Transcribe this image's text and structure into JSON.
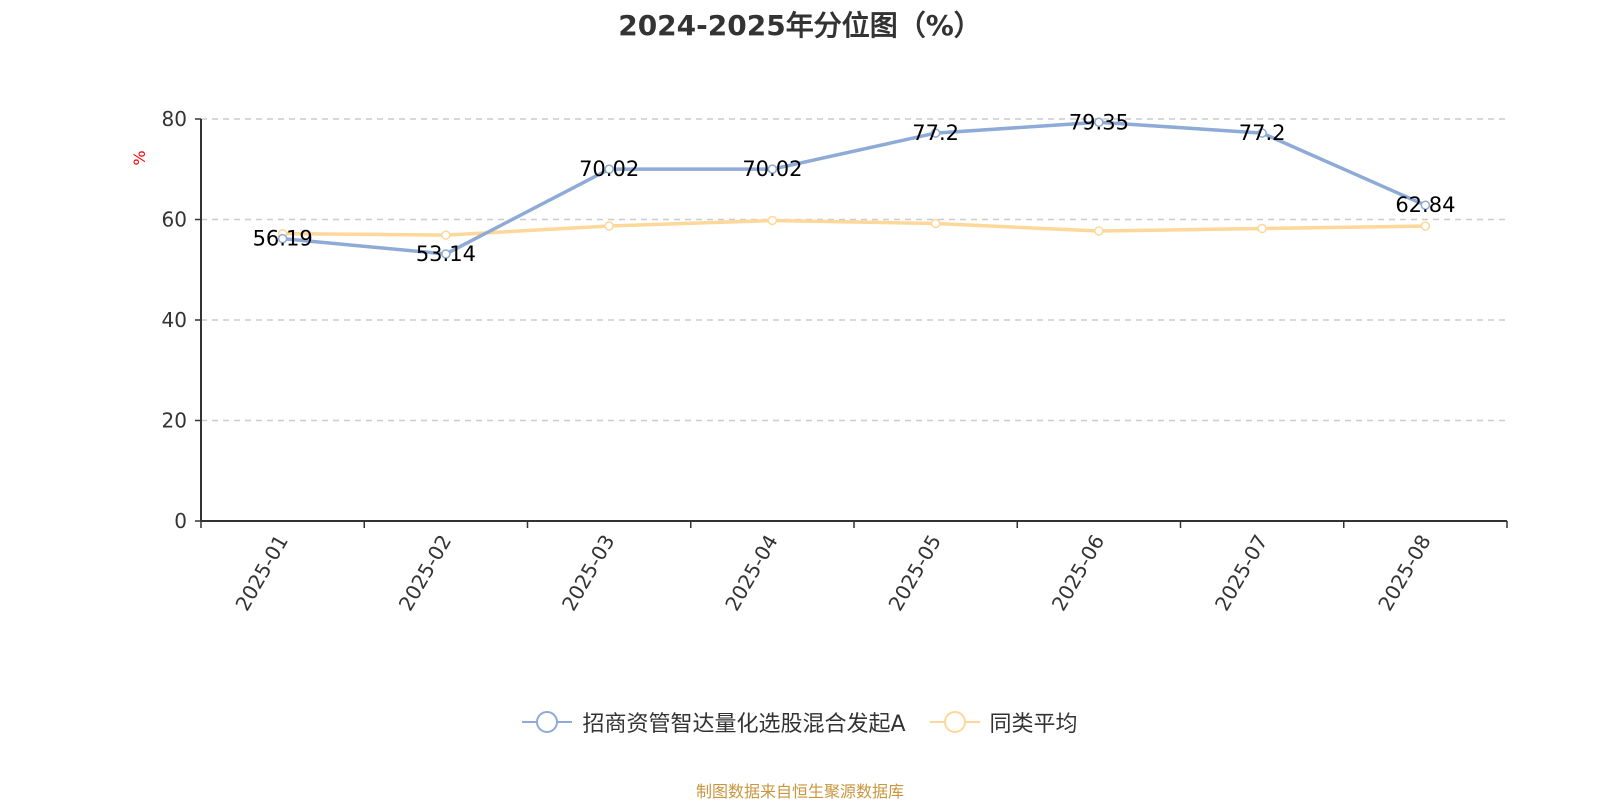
{
  "title": "2024-2025年分位图（%）",
  "source_note": "制图数据来自恒生聚源数据库",
  "colors": {
    "series_a": "#8eaad6",
    "series_b": "#fdd89a",
    "ylabel": "#ff0000",
    "grid": "#cccccc",
    "axis": "#333333"
  },
  "chart_data": {
    "type": "line",
    "title": "2024-2025年分位图（%）",
    "xlabel": "",
    "ylabel": "%",
    "ylim": [
      0,
      80
    ],
    "yticks": [
      0,
      20,
      40,
      60,
      80
    ],
    "grid": true,
    "legend_position": "bottom",
    "categories": [
      "2025-01",
      "2025-02",
      "2025-03",
      "2025-04",
      "2025-05",
      "2025-06",
      "2025-07",
      "2025-08"
    ],
    "series": [
      {
        "name": "招商资管智达量化选股混合发起A",
        "values": [
          56.19,
          53.14,
          70.02,
          70.02,
          77.2,
          79.35,
          77.2,
          62.84
        ],
        "show_labels": true
      },
      {
        "name": "同类平均",
        "values": [
          57.2,
          56.9,
          58.7,
          59.8,
          59.2,
          57.7,
          58.2,
          58.7
        ],
        "show_labels": false
      }
    ]
  }
}
